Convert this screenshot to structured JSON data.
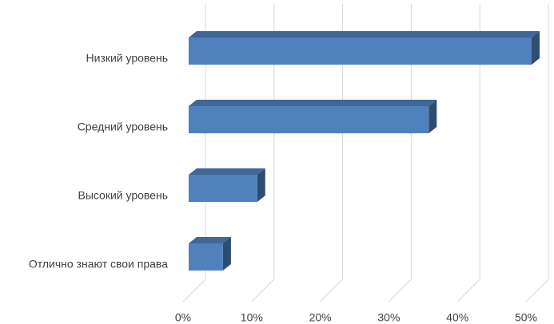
{
  "chart_data": {
    "type": "bar3d",
    "orientation": "horizontal",
    "categories": [
      "Низкий уровень",
      "Средний уровень",
      "Высокий уровень",
      "Отлично знают свои права"
    ],
    "values": [
      50,
      35,
      10,
      5
    ],
    "color": "#4f81bd",
    "xlim": [
      0,
      50
    ],
    "xticks": [
      {
        "value": 0,
        "label": "0%"
      },
      {
        "value": 10,
        "label": "10%"
      },
      {
        "value": 20,
        "label": "20%"
      },
      {
        "value": 30,
        "label": "30%"
      },
      {
        "value": 40,
        "label": "40%"
      },
      {
        "value": 50,
        "label": "50%"
      }
    ],
    "grid": true
  }
}
